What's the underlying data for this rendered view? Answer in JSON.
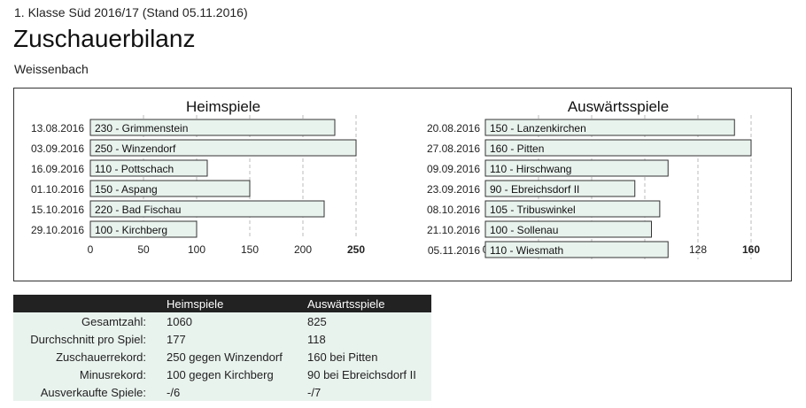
{
  "header": {
    "league": "1. Klasse Süd 2016/17 (Stand 05.11.2016)",
    "title": "Zuschauerbilanz",
    "team": "Weissenbach"
  },
  "colors": {
    "bar_fill": "#e9f3ee",
    "bar_stroke": "#333333",
    "grid": "#bbbbbb",
    "table_header_bg": "#222222",
    "table_body_bg": "#e9f3ee"
  },
  "chart_data": [
    {
      "type": "bar",
      "orientation": "horizontal",
      "title": "Heimspiele",
      "categories": [
        "13.08.2016",
        "03.09.2016",
        "16.09.2016",
        "01.10.2016",
        "15.10.2016",
        "29.10.2016"
      ],
      "bar_labels": [
        "230 - Grimmenstein",
        "250 - Winzendorf",
        "110 - Pottschach",
        "150 - Aspang",
        "220 - Bad Fischau",
        "100 - Kirchberg"
      ],
      "values": [
        230,
        250,
        110,
        150,
        220,
        100
      ],
      "xlim": [
        0,
        250
      ],
      "xticks": [
        "0",
        "50",
        "100",
        "150",
        "200",
        "250"
      ],
      "grid": true
    },
    {
      "type": "bar",
      "orientation": "horizontal",
      "title": "Auswärtsspiele",
      "categories": [
        "20.08.2016",
        "27.08.2016",
        "09.09.2016",
        "23.09.2016",
        "08.10.2016",
        "21.10.2016",
        "05.11.2016"
      ],
      "bar_labels": [
        "150 - Lanzenkirchen",
        "160 - Pitten",
        "110 - Hirschwang",
        "90 - Ebreichsdorf II",
        "105 - Tribuswinkel",
        "100 - Sollenau",
        "110 - Wiesmath"
      ],
      "values": [
        150,
        160,
        110,
        90,
        105,
        100,
        110
      ],
      "xlim": [
        0,
        160
      ],
      "xticks": [
        "0",
        "32",
        "64",
        "96",
        "128",
        "160"
      ],
      "grid": true
    }
  ],
  "table": {
    "headers": [
      "",
      "Heimspiele",
      "Auswärtsspiele"
    ],
    "rows": [
      {
        "label": "Gesamtzahl:",
        "home": "1060",
        "away": "825"
      },
      {
        "label": "Durchschnitt pro Spiel:",
        "home": "177",
        "away": "118"
      },
      {
        "label": "Zuschauerrekord:",
        "home": "250 gegen Winzendorf",
        "away": "160 bei Pitten"
      },
      {
        "label": "Minusrekord:",
        "home": "100 gegen Kirchberg",
        "away": "90 bei Ebreichsdorf II"
      },
      {
        "label": "Ausverkaufte Spiele:",
        "home": "-/6",
        "away": "-/7"
      }
    ]
  }
}
